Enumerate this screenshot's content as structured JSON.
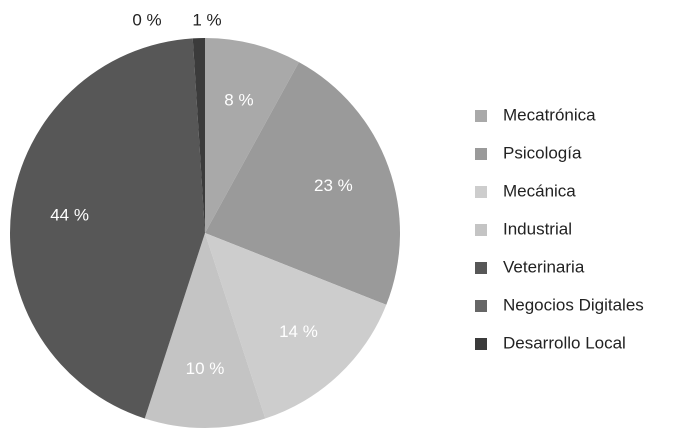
{
  "chart_data": {
    "type": "pie",
    "categories": [
      "Mecatrónica",
      "Psicología",
      "Mecánica",
      "Industrial",
      "Veterinaria",
      "Negocios Digitales",
      "Desarrollo Local"
    ],
    "values": [
      8,
      23,
      14,
      10,
      44,
      0,
      1
    ],
    "value_labels": [
      "8 %",
      "23 %",
      "14 %",
      "10 %",
      "44 %",
      "0 %",
      "1 %"
    ],
    "colors": [
      "#a9a9a9",
      "#9a9a9a",
      "#cdcdcd",
      "#c4c4c4",
      "#575757",
      "#666666",
      "#3b3b3b"
    ],
    "legend": "right"
  }
}
